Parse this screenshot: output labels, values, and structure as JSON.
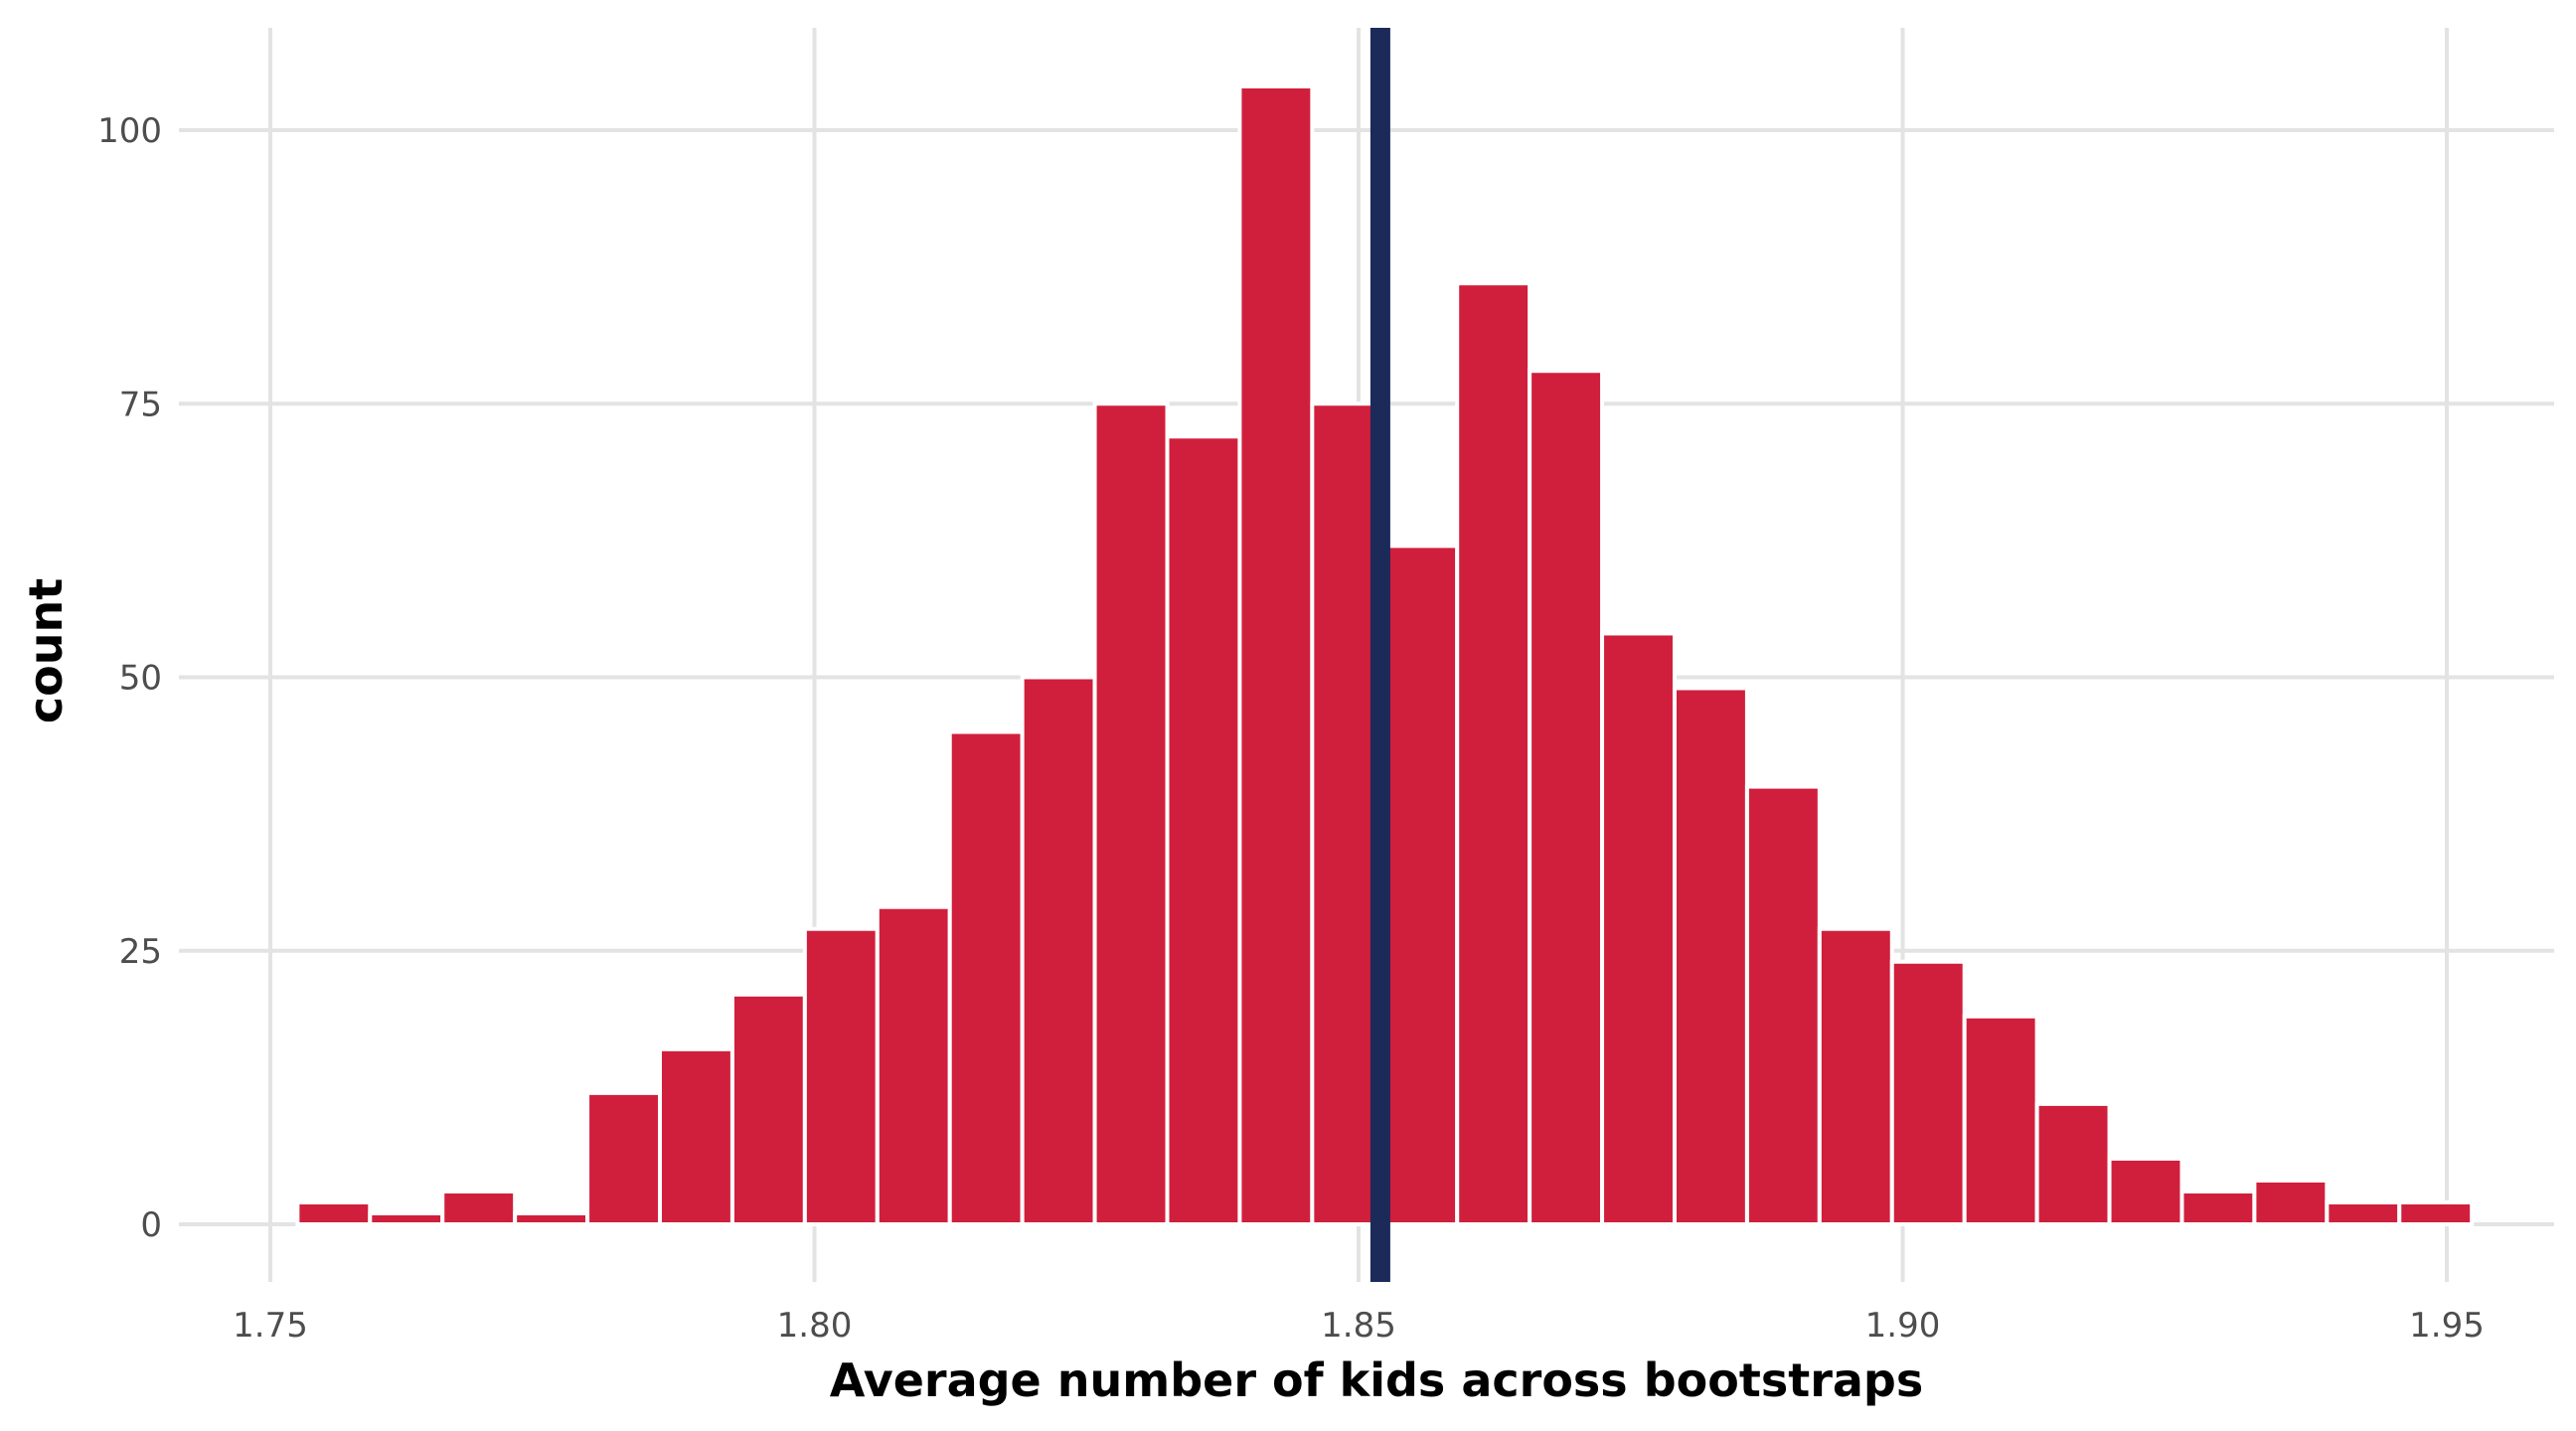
{
  "chart_data": {
    "type": "bar",
    "title": "",
    "xlabel": "Average number of kids across bootstraps",
    "ylabel": "count",
    "xlim": [
      1.75,
      1.95
    ],
    "ylim": [
      -5,
      110
    ],
    "grid": true,
    "x_ticks": [
      1.75,
      1.8,
      1.85,
      1.9,
      1.95
    ],
    "x_tick_labels": [
      "1.75",
      "1.80",
      "1.85",
      "1.90",
      "1.95"
    ],
    "y_ticks": [
      0,
      25,
      50,
      75,
      100
    ],
    "y_tick_labels": [
      "0",
      "25",
      "50",
      "75",
      "100"
    ],
    "bin_width": 0.00666,
    "bins_start": 1.7525,
    "values": [
      2,
      1,
      3,
      1,
      12,
      16,
      21,
      27,
      29,
      45,
      50,
      75,
      72,
      104,
      75,
      62,
      86,
      78,
      54,
      49,
      40,
      27,
      24,
      19,
      11,
      6,
      3,
      4,
      2,
      2
    ],
    "bar_color": "#d01f3c",
    "reference_line": {
      "x": 1.852,
      "color": "#1c2a5a"
    }
  }
}
